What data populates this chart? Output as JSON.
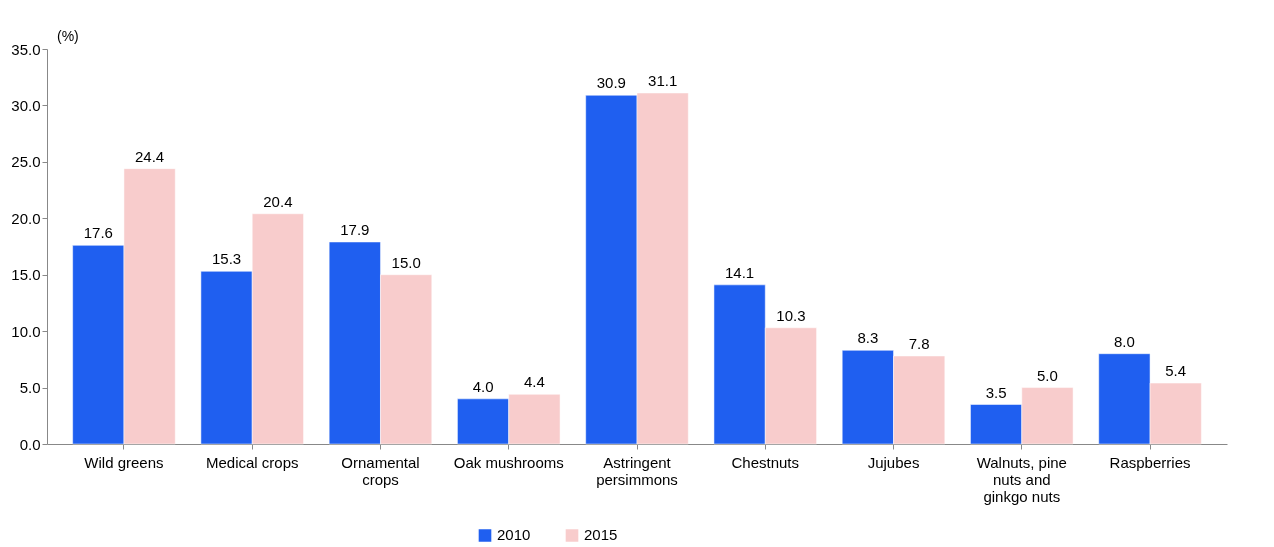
{
  "chart_data": {
    "type": "bar",
    "ylabel": "(%)",
    "categories": [
      "Wild greens",
      "Medical crops",
      "Ornamental crops",
      "Oak mushrooms",
      "Astringent persimmons",
      "Chestnuts",
      "Jujubes",
      "Walnuts, pine nuts and ginkgo nuts",
      "Raspberries"
    ],
    "series": [
      {
        "name": "2010",
        "color": "#1f5ff0",
        "values": [
          17.6,
          15.3,
          17.9,
          4.0,
          30.9,
          14.1,
          8.3,
          3.5,
          8.0
        ],
        "value_labels": [
          "17.6",
          "15.3",
          "17.9",
          "4.0",
          "30.9",
          "14.1",
          "8.3",
          "3.5",
          "8.0"
        ]
      },
      {
        "name": "2015",
        "color": "#f8cccc",
        "values": [
          24.4,
          20.4,
          15.0,
          4.4,
          31.1,
          10.3,
          7.8,
          5.0,
          5.4
        ],
        "value_labels": [
          "24.4",
          "20.4",
          "15.0",
          "4.4",
          "31.1",
          "10.3",
          "7.8",
          "5.0",
          "5.4"
        ]
      }
    ],
    "ylim": [
      0,
      35
    ],
    "yticks": [
      {
        "value": 0,
        "label": "0.0"
      },
      {
        "value": 5,
        "label": "5.0"
      },
      {
        "value": 10,
        "label": "10.0"
      },
      {
        "value": 15,
        "label": "15.0"
      },
      {
        "value": 20,
        "label": "20.0"
      },
      {
        "value": 25,
        "label": "25.0"
      },
      {
        "value": 30,
        "label": "30.0"
      },
      {
        "value": 35,
        "label": "35.0"
      }
    ],
    "legend": "bottom",
    "grid": false
  }
}
